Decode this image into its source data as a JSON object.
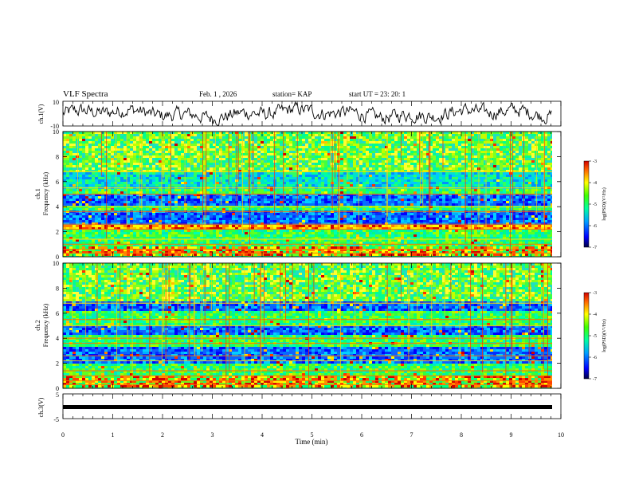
{
  "header": {
    "title": "VLF Spectra",
    "date": "Feb. 1 , 2026",
    "station": "station= KAP",
    "start": "start UT =  23: 20: 1"
  },
  "chart_data": [
    {
      "type": "line",
      "name": "ch1-waveform",
      "ylabel": "ch.1(V)",
      "ylim": [
        -10,
        10
      ],
      "yticks": [
        10,
        -10
      ],
      "xlim": [
        0,
        9.85
      ]
    },
    {
      "type": "heatmap",
      "name": "ch1-spectrogram",
      "ylabel": "ch.1\nFrequency (kHz)",
      "ylabel_parts": [
        "ch.1",
        "Frequency (kHz)"
      ],
      "ylim": [
        0,
        10
      ],
      "yticks": [
        "0",
        "2",
        "4",
        "6",
        "8",
        "10"
      ],
      "colorbar": {
        "label": "log(PSD)(V²/Hz)",
        "range": [
          -7,
          -3
        ],
        "ticks": [
          "-3",
          "-4",
          "-5",
          "-6",
          "-7"
        ]
      },
      "bands": [
        {
          "from": 0.0,
          "to": 0.8,
          "level": "mixed"
        },
        {
          "from": 0.8,
          "to": 2.2,
          "level": "mid"
        },
        {
          "from": 2.2,
          "to": 2.6,
          "level": "high"
        },
        {
          "from": 2.6,
          "to": 3.6,
          "level": "low"
        },
        {
          "from": 3.6,
          "to": 4.0,
          "level": "mid"
        },
        {
          "from": 4.0,
          "to": 5.0,
          "level": "low"
        },
        {
          "from": 5.0,
          "to": 5.5,
          "level": "mid"
        },
        {
          "from": 5.5,
          "to": 6.8,
          "level": "low-mid"
        },
        {
          "from": 6.8,
          "to": 10.0,
          "level": "mid-high"
        }
      ]
    },
    {
      "type": "heatmap",
      "name": "ch2-spectrogram",
      "ylabel": "ch.2\nFrequency (kHz)",
      "ylabel_parts": [
        "ch.2",
        "Frequency (kHz)"
      ],
      "ylim": [
        0,
        10
      ],
      "yticks": [
        "0",
        "2",
        "4",
        "6",
        "8",
        "10"
      ],
      "colorbar": {
        "label": "log(PSD)(V²/Hz)",
        "range": [
          -7,
          -3
        ],
        "ticks": [
          "-3",
          "-4",
          "-5",
          "-6",
          "-7"
        ]
      },
      "bands": [
        {
          "from": 0.0,
          "to": 1.0,
          "level": "mixed"
        },
        {
          "from": 1.0,
          "to": 2.0,
          "level": "mid"
        },
        {
          "from": 2.0,
          "to": 3.3,
          "level": "low"
        },
        {
          "from": 3.3,
          "to": 4.2,
          "level": "mid"
        },
        {
          "from": 4.2,
          "to": 5.0,
          "level": "low"
        },
        {
          "from": 5.0,
          "to": 6.2,
          "level": "mid"
        },
        {
          "from": 6.2,
          "to": 7.0,
          "level": "low"
        },
        {
          "from": 7.0,
          "to": 10.0,
          "level": "mid-high"
        }
      ]
    },
    {
      "type": "line",
      "name": "ch3-signal",
      "ylabel": "ch.3(V)",
      "ylim": [
        -5,
        5
      ],
      "yticks": [
        "5",
        "-5"
      ],
      "constant_value": 0,
      "xlabel": "Time (min)",
      "xlim": [
        0,
        10
      ],
      "xticks": [
        "0",
        "1",
        "2",
        "3",
        "4",
        "5",
        "6",
        "7",
        "8",
        "9",
        "10"
      ]
    }
  ]
}
